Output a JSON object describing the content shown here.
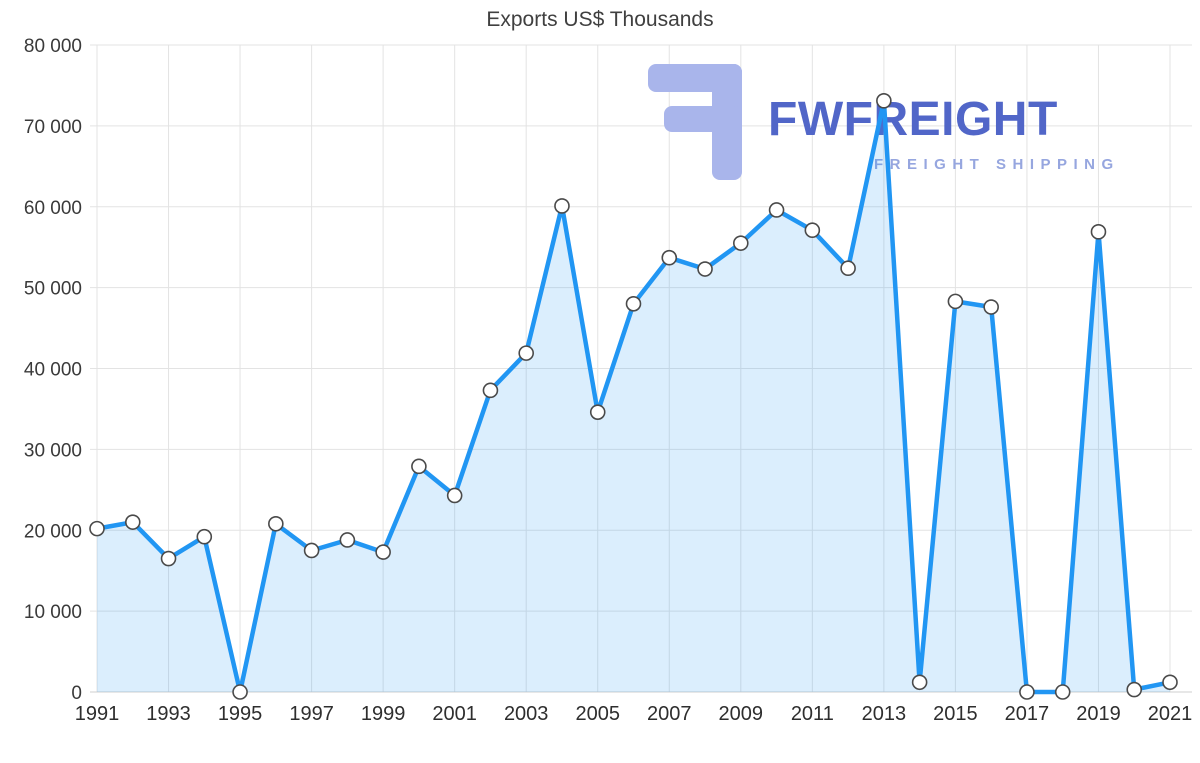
{
  "title": "Exports US$ Thousands",
  "watermark": {
    "brand": "FWFREIGHT",
    "tagline": "FREIGHT SHIPPING",
    "brand_color": "#5166C8",
    "tagline_color": "#96A6DF",
    "icon_color": "#A9B5EB",
    "icon_name": "fwfreight-logo-icon"
  },
  "chart_data": {
    "type": "area",
    "title": "Exports US$ Thousands",
    "x": [
      1991,
      1992,
      1993,
      1994,
      1995,
      1996,
      1997,
      1998,
      1999,
      2000,
      2001,
      2002,
      2003,
      2004,
      2005,
      2006,
      2007,
      2008,
      2009,
      2010,
      2011,
      2012,
      2013,
      2014,
      2015,
      2016,
      2017,
      2018,
      2019,
      2020,
      2021
    ],
    "values": [
      20200,
      21000,
      16500,
      19200,
      0,
      20800,
      17500,
      18800,
      17300,
      27900,
      24300,
      37300,
      41900,
      60100,
      34600,
      48000,
      53700,
      52300,
      55500,
      59600,
      57100,
      52400,
      73100,
      1200,
      48300,
      47600,
      0,
      0,
      56900,
      300,
      1200
    ],
    "xlabel": "",
    "ylabel": "",
    "ylim": [
      0,
      80000
    ],
    "grid": true,
    "legend": "none",
    "ytick_values": [
      0,
      10000,
      20000,
      30000,
      40000,
      50000,
      60000,
      70000,
      80000
    ],
    "ytick_labels": [
      "0",
      "10 000",
      "20 000",
      "30 000",
      "40 000",
      "50 000",
      "60 000",
      "70 000",
      "80 000"
    ],
    "xtick_values": [
      1991,
      1993,
      1995,
      1997,
      1999,
      2001,
      2003,
      2005,
      2007,
      2009,
      2011,
      2013,
      2015,
      2017,
      2019,
      2021
    ],
    "line_color": "#2196F3",
    "area_color": "rgba(33,150,243,0.16)",
    "grid_color": "#E3E3E3",
    "axis_line_color": "#CFCFCF",
    "marker_fill": "#FFFFFF",
    "marker_stroke": "#4A4A4A"
  }
}
